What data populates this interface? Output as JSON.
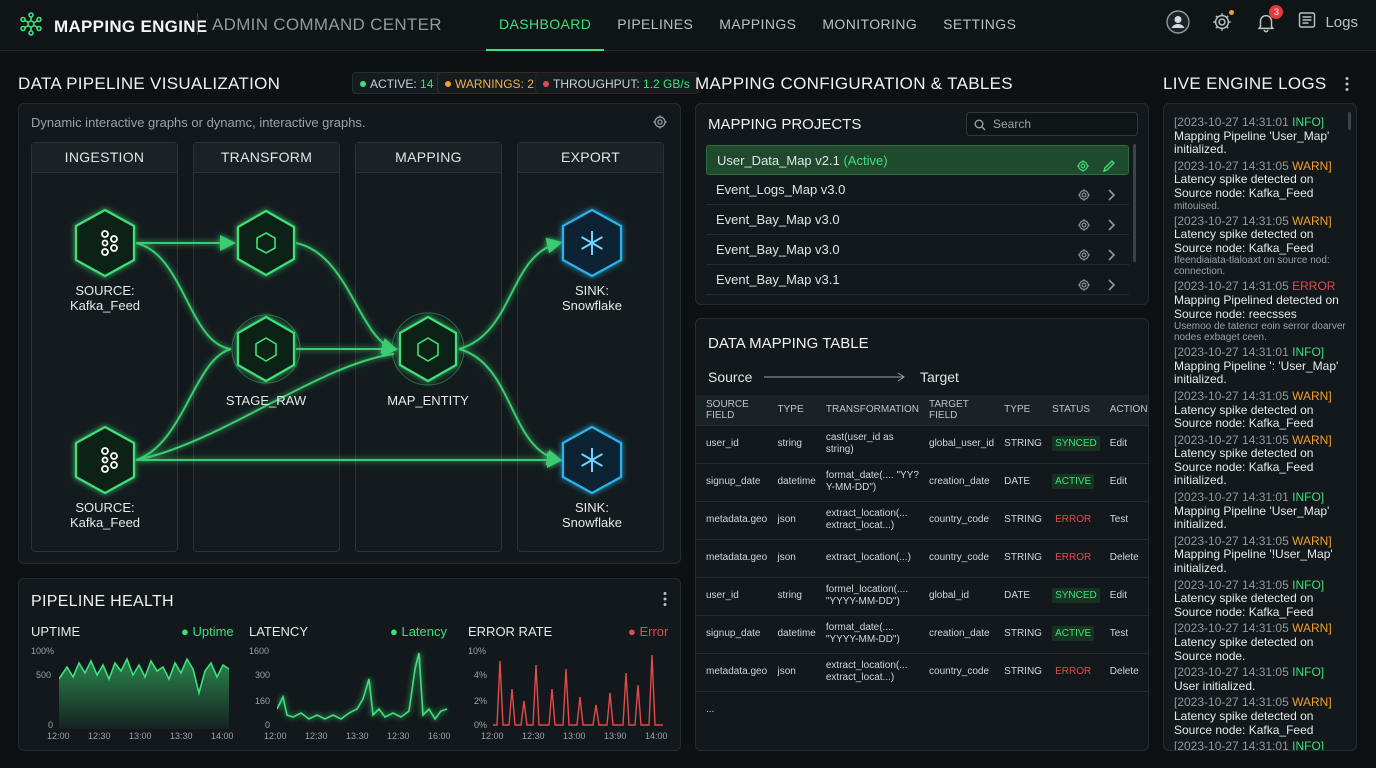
{
  "header": {
    "brand": "MAPPING ENGINE",
    "subtitle": "ADMIN COMMAND CENTER",
    "tabs": [
      {
        "label": "DASHBOARD",
        "active": true
      },
      {
        "label": "PIPELINES",
        "active": false
      },
      {
        "label": "MAPPINGS",
        "active": false
      },
      {
        "label": "MONITORING",
        "active": false
      },
      {
        "label": "SETTINGS",
        "active": false
      }
    ],
    "notification_count": "3",
    "logs_label": "Logs"
  },
  "pipeline_viz": {
    "title": "DATA PIPELINE VISUALIZATION",
    "status": {
      "active_label": "ACTIVE:",
      "active_value": "14",
      "warnings": "WARNINGS: 2",
      "throughput_label": "THROUGHPUT:",
      "throughput_value": "1.2 GB/s"
    },
    "description": "Dynamic interactive graphs or dynamc, interactive graphs.",
    "stages": [
      "INGESTION",
      "TRANSFORM",
      "MAPPING",
      "EXPORT"
    ],
    "nodes": {
      "source1": "SOURCE:\nKafka_Feed",
      "source2": "SOURCE:\nKafka_Feed",
      "stage_raw": "STAGE_RAW",
      "map_entity": "MAP_ENTITY",
      "sink1": "SINK:\nSnowflake",
      "sink2": "SINK:\nSnowflake"
    }
  },
  "health": {
    "title": "PIPELINE HEALTH",
    "charts": [
      {
        "name": "UPTIME",
        "legend": "Uptime",
        "color": "#3fe07a",
        "yticks": [
          "100%",
          "500",
          "0"
        ],
        "xticks": [
          "12:00",
          "12:30",
          "13:00",
          "13:30",
          "14:00"
        ]
      },
      {
        "name": "LATENCY",
        "legend": "Latency",
        "color": "#3fe07a",
        "yticks": [
          "1600",
          "300",
          "160",
          "0"
        ],
        "xticks": [
          "12:00",
          "12:30",
          "13:30",
          "12:30",
          "16:00"
        ]
      },
      {
        "name": "ERROR RATE",
        "legend": "Error",
        "color": "#e34a4a",
        "yticks": [
          "10%",
          "4%",
          "2%",
          "0%"
        ],
        "xticks": [
          "12:00",
          "12:30",
          "13:00",
          "13:90",
          "14:00"
        ]
      }
    ]
  },
  "mapping": {
    "title": "MAPPING CONFIGURATION & TABLES",
    "projects_title": "MAPPING PROJECTS",
    "search_placeholder": "Search",
    "projects": [
      {
        "name": "User_Data_Map v2.1",
        "tag": "(Active)",
        "selected": true
      },
      {
        "name": "Event_Logs_Map v3.0",
        "tag": "",
        "selected": false
      },
      {
        "name": "Event_Bay_Map v3.0",
        "tag": "",
        "selected": false
      },
      {
        "name": "Event_Bay_Map v3.0",
        "tag": "",
        "selected": false
      },
      {
        "name": "Event_Bay_Map v3.1",
        "tag": "",
        "selected": false
      }
    ],
    "table_title": "DATA MAPPING TABLE",
    "source_label": "Source",
    "target_label": "Target",
    "columns": [
      "SOURCE FIELD",
      "TYPE",
      "TRANSFORMATION",
      "TARGET FIELD",
      "TYPE",
      "STATUS",
      "ACTION"
    ],
    "rows": [
      [
        "user_id",
        "string",
        "cast(user_id as string)",
        "global_user_id",
        "STRING",
        "SYNCED",
        "Edit"
      ],
      [
        "signup_date",
        "datetime",
        "format_date(.... \"YY?Y-MM-DD\")",
        "creation_date",
        "DATE",
        "ACTIVE",
        "Edit"
      ],
      [
        "metadata.geo",
        "json",
        "extract_location(... extract_locat...)",
        "country_code",
        "STRING",
        "ERROR",
        "Test"
      ],
      [
        "metadata.geo",
        "json",
        "extract_location(...)",
        "country_code",
        "STRING",
        "ERROR",
        "Delete"
      ],
      [
        "user_id",
        "string",
        "formel_location(.... \"YYYY-MM-DD\")",
        "global_id",
        "DATE",
        "SYNCED",
        "Edit"
      ],
      [
        "signup_date",
        "datetime",
        "format_date(.... \"YYYY-MM-DD\")",
        "creation_date",
        "STRING",
        "ACTIVE",
        "Test"
      ],
      [
        "metadata.geo",
        "json",
        "extract_location(... extract_locat...)",
        "country_code",
        "STRING",
        "ERROR",
        "Delete"
      ]
    ],
    "ellipsis": "..."
  },
  "logs": {
    "title": "LIVE ENGINE LOGS",
    "entries": [
      {
        "ts": "[2023-10-27 14:31:01",
        "level": "INFO]",
        "lvl": "INFO",
        "msg": "Mapping Pipeline 'User_Map' initialized.",
        "extra": ""
      },
      {
        "ts": "[2023-10-27 14:31:05",
        "level": "WARN]",
        "lvl": "WARN",
        "msg": "Latency spike detected on Source node: Kafka_Feed",
        "extra": "mitouised."
      },
      {
        "ts": "[2023-10-27 14:31:05",
        "level": "WARN]",
        "lvl": "WARN",
        "msg": "Latency spike detected on Source node: Kafka_Feed",
        "extra": "Ifeendiaiata-tlaloaxt on source nod: connection."
      },
      {
        "ts": "[2023-10-27 14:31:05",
        "level": "ERROR",
        "lvl": "ERROR",
        "msg": "Mapping Pipelined detected on Source node: reecsses",
        "extra": "Usemoo de tatencr eoin serror doarver nodes exbaget ceen."
      },
      {
        "ts": "[2023-10-27 14:31:01",
        "level": "INFO]",
        "lvl": "INFO",
        "msg": "Mapping Pipeline ': 'User_Map' initialized.",
        "extra": ""
      },
      {
        "ts": "[2023-10-27 14:31:05",
        "level": "WARN]",
        "lvl": "WARN",
        "msg": "Latency spike detected on Source node: Kafka_Feed",
        "extra": ""
      },
      {
        "ts": "[2023-10-27 14:31:05",
        "level": "WARN]",
        "lvl": "WARN",
        "msg": "Latency spike detected on Source node: Kafka_Feed initialized.",
        "extra": ""
      },
      {
        "ts": "[2023-10-27 14:31:01",
        "level": "INFO]",
        "lvl": "INFO",
        "msg": "Mapping Pipeline 'User_Map' initialized.",
        "extra": ""
      },
      {
        "ts": "[2023-10-27 14:31:05",
        "level": "WARN]",
        "lvl": "WARN",
        "msg": "Mapping Pipeline '!User_Map' initialized.",
        "extra": ""
      },
      {
        "ts": "[2023-10-27 14:31:05",
        "level": "INFO]",
        "lvl": "INFO",
        "msg": "Latency spike detected on Source node: Kafka_Feed",
        "extra": ""
      },
      {
        "ts": "[2023-10-27 14:31:05",
        "level": "WARN]",
        "lvl": "WARN",
        "msg": "Latency spike detected on Source node.",
        "extra": ""
      },
      {
        "ts": "[2023-10-27 14:31:05",
        "level": "INFO]",
        "lvl": "INFO",
        "msg": "User initialized.",
        "extra": ""
      },
      {
        "ts": "[2023-10-27 14:31:05",
        "level": "WARN]",
        "lvl": "WARN",
        "msg": "Latency spike detected on Source node: Kafka_Feed",
        "extra": ""
      },
      {
        "ts": "[2023-10-27 14:31:01",
        "level": "INFO]",
        "lvl": "INFO",
        "msg": "",
        "extra": ""
      }
    ]
  },
  "colors": {
    "accent": "#3fe07a",
    "warn": "#f0a030",
    "error": "#e34a4a",
    "snowflake": "#2ab4ec"
  },
  "icons": [
    "logo-icon",
    "user-icon",
    "gear-icon",
    "bell-icon",
    "logs-icon",
    "search-icon",
    "kafka-icon",
    "hex-icon",
    "snowflake-icon",
    "pencil-icon",
    "chevron-right-icon",
    "more-icon"
  ]
}
